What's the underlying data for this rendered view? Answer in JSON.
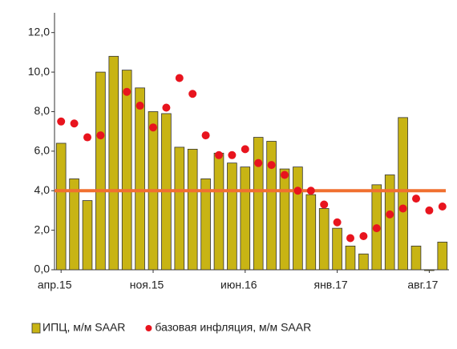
{
  "chart_data": {
    "type": "bar",
    "categories": [
      "апр.15",
      null,
      null,
      null,
      null,
      null,
      null,
      "ноя.15",
      null,
      null,
      null,
      null,
      null,
      null,
      "июн.16",
      null,
      null,
      null,
      null,
      null,
      null,
      "янв.17",
      null,
      null,
      null,
      null,
      null,
      null,
      "авг.17",
      null
    ],
    "series": [
      {
        "name": "ИПЦ, м/м SAAR",
        "color": "#c8b414",
        "values": [
          6.4,
          4.6,
          3.5,
          10.0,
          10.8,
          10.1,
          9.2,
          8.0,
          7.9,
          6.2,
          6.1,
          4.6,
          5.9,
          5.4,
          5.2,
          6.7,
          6.5,
          5.1,
          5.2,
          3.8,
          3.1,
          2.1,
          1.2,
          0.8,
          4.3,
          4.8,
          7.7,
          1.2,
          0.0,
          1.4
        ]
      },
      {
        "name": "базовая инфляция, м/м SAAR",
        "color": "#e8141e",
        "type": "scatter",
        "values": [
          7.5,
          7.4,
          6.7,
          6.8,
          null,
          9.0,
          8.3,
          7.2,
          8.2,
          9.7,
          8.9,
          6.8,
          5.8,
          5.8,
          6.1,
          5.4,
          5.3,
          4.8,
          4.0,
          4.0,
          3.3,
          2.4,
          1.6,
          1.7,
          2.1,
          2.8,
          3.1,
          3.6,
          3.0,
          3.2
        ]
      }
    ],
    "target_line": {
      "value": 4.0,
      "color": "#f07030"
    },
    "ylim": [
      0,
      13
    ],
    "yticks": [
      {
        "value": 0,
        "label": "0,0"
      },
      {
        "value": 2,
        "label": "2,0"
      },
      {
        "value": 4,
        "label": "4,0"
      },
      {
        "value": 6,
        "label": "6,0"
      },
      {
        "value": 8,
        "label": "8,0"
      },
      {
        "value": 10,
        "label": "10,0"
      },
      {
        "value": 12,
        "label": "12,0"
      }
    ],
    "legend": "bottom"
  }
}
